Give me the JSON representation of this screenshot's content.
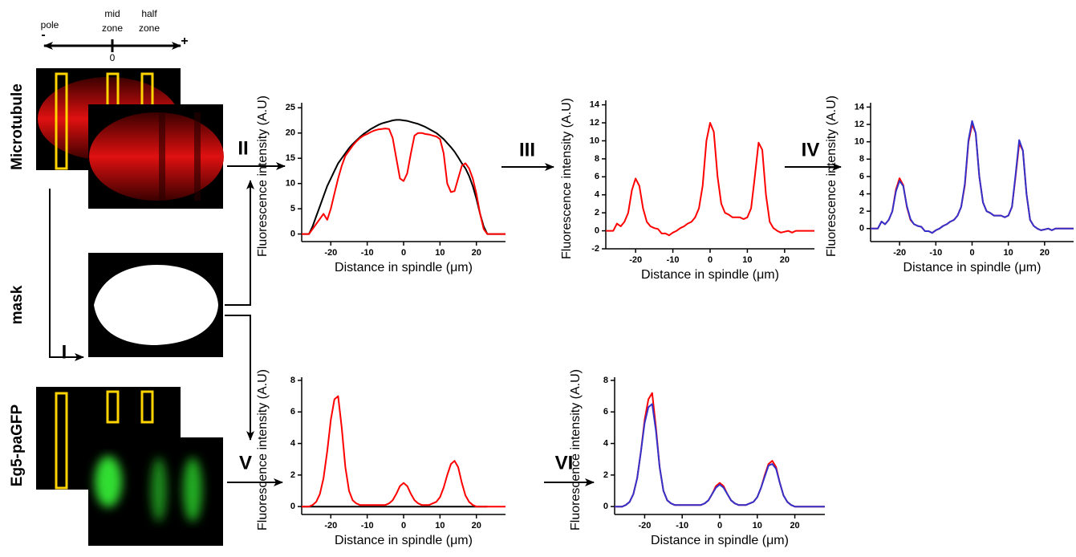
{
  "panel": {
    "orientation": {
      "pole": "pole",
      "mid_zone": [
        "mid",
        "zone"
      ],
      "half_zone": [
        "half",
        "zone"
      ],
      "zero": "0",
      "minus": "-",
      "plus": "+"
    },
    "rows": [
      "Microtubule",
      "mask",
      "Eg5-paGFP"
    ],
    "steps": [
      "I",
      "II",
      "III",
      "IV",
      "V",
      "VI"
    ]
  },
  "chart_data": [
    {
      "type": "line",
      "x_label": "Distance in spindle (μm)",
      "y_label": "Fluorescence intensity (A.U)",
      "x": [
        -28,
        -27,
        -26,
        -25,
        -24,
        -23,
        -22,
        -21,
        -20,
        -19,
        -18,
        -17,
        -16,
        -15,
        -14,
        -13,
        -12,
        -11,
        -10,
        -9,
        -8,
        -7,
        -6,
        -5,
        -4,
        -3,
        -2,
        -1,
        0,
        1,
        2,
        3,
        4,
        5,
        6,
        7,
        8,
        9,
        10,
        11,
        12,
        13,
        14,
        15,
        16,
        17,
        18,
        19,
        20,
        21,
        22,
        23,
        24,
        25,
        26,
        27,
        28
      ],
      "series": [
        {
          "color": "#000000",
          "values": [
            0,
            0,
            0,
            1.5,
            3.5,
            5.5,
            7.5,
            9.5,
            11,
            12.5,
            14,
            15,
            16,
            17,
            17.8,
            18.5,
            19.2,
            19.8,
            20.3,
            20.8,
            21.2,
            21.6,
            21.9,
            22.1,
            22.3,
            22.5,
            22.6,
            22.6,
            22.5,
            22.4,
            22.2,
            22,
            21.8,
            21.5,
            21.2,
            20.8,
            20.4,
            20,
            19.4,
            18.8,
            18,
            17.2,
            16.3,
            15.2,
            14,
            13,
            11.5,
            9.5,
            7,
            4,
            1.5,
            0,
            0,
            0,
            0,
            0,
            0
          ]
        },
        {
          "color": "#ff0000",
          "values": [
            0,
            0,
            0,
            1,
            2,
            3,
            4,
            2.8,
            5,
            8,
            11,
            13.5,
            15.5,
            16.5,
            17.5,
            18.3,
            19,
            19.5,
            19.8,
            20.2,
            20.5,
            20.7,
            20.8,
            20.9,
            20.8,
            19,
            15,
            11,
            10.5,
            12,
            16,
            19.5,
            20,
            20,
            19.8,
            19.7,
            19.5,
            19.3,
            18.8,
            16,
            10,
            8.3,
            8.5,
            11,
            13.5,
            14,
            13,
            11,
            8,
            4,
            1,
            0,
            0,
            0,
            0,
            0,
            0
          ]
        }
      ],
      "xlim": [
        -28,
        28
      ],
      "xticks": [
        -20,
        -10,
        0,
        10,
        20
      ],
      "ylim": [
        -1.5,
        26
      ],
      "yticks": [
        0,
        5,
        10,
        15,
        20,
        25
      ]
    },
    {
      "type": "line",
      "x_label": "Distance in spindle (μm)",
      "y_label": "Fluorescence intensity (A.U)",
      "x": [
        -28,
        -27,
        -26,
        -25,
        -24,
        -23,
        -22,
        -21,
        -20,
        -19,
        -18,
        -17,
        -16,
        -15,
        -14,
        -13,
        -12,
        -11,
        -10,
        -9,
        -8,
        -7,
        -6,
        -5,
        -4,
        -3,
        -2,
        -1,
        0,
        1,
        2,
        3,
        4,
        5,
        6,
        7,
        8,
        9,
        10,
        11,
        12,
        13,
        14,
        15,
        16,
        17,
        18,
        19,
        20,
        21,
        22,
        23,
        24,
        25,
        26,
        27,
        28
      ],
      "series": [
        {
          "color": "#ff0000",
          "values": [
            0,
            0,
            0,
            0.8,
            0.5,
            1,
            2,
            4.5,
            5.8,
            5,
            2.5,
            1,
            0.5,
            0.3,
            0.2,
            -0.3,
            -0.3,
            -0.5,
            -0.2,
            0,
            0.3,
            0.5,
            0.8,
            1,
            1.5,
            2.5,
            5,
            10,
            12,
            11,
            6,
            3,
            2,
            1.8,
            1.5,
            1.5,
            1.5,
            1.3,
            1.5,
            2.5,
            6,
            9.8,
            9,
            4,
            1,
            0.3,
            0,
            -0.2,
            -0.1,
            0,
            -0.2,
            0,
            0,
            0,
            0,
            0,
            0
          ]
        }
      ],
      "xlim": [
        -28,
        28
      ],
      "xticks": [
        -20,
        -10,
        0,
        10,
        20
      ],
      "ylim": [
        -2,
        14.5
      ],
      "yticks": [
        -2,
        0,
        2,
        4,
        6,
        8,
        10,
        12,
        14
      ]
    },
    {
      "type": "line",
      "x_label": "Distance in spindle (μm)",
      "y_label": "Fluorescence intensity (A.U)",
      "x": [
        -28,
        -27,
        -26,
        -25,
        -24,
        -23,
        -22,
        -21,
        -20,
        -19,
        -18,
        -17,
        -16,
        -15,
        -14,
        -13,
        -12,
        -11,
        -10,
        -9,
        -8,
        -7,
        -6,
        -5,
        -4,
        -3,
        -2,
        -1,
        0,
        1,
        2,
        3,
        4,
        5,
        6,
        7,
        8,
        9,
        10,
        11,
        12,
        13,
        14,
        15,
        16,
        17,
        18,
        19,
        20,
        21,
        22,
        23,
        24,
        25,
        26,
        27,
        28
      ],
      "series": [
        {
          "color": "#ff0000",
          "values": [
            0,
            0,
            0,
            0.8,
            0.5,
            1,
            2,
            4.5,
            5.8,
            5,
            2.5,
            1,
            0.5,
            0.3,
            0.2,
            -0.3,
            -0.3,
            -0.5,
            -0.2,
            0,
            0.3,
            0.5,
            0.8,
            1,
            1.5,
            2.5,
            5,
            10,
            12,
            11,
            6,
            3,
            2,
            1.8,
            1.5,
            1.5,
            1.5,
            1.3,
            1.5,
            2.5,
            6,
            9.8,
            9,
            4,
            1,
            0.3,
            0,
            -0.2,
            -0.1,
            0,
            -0.2,
            0,
            0,
            0,
            0,
            0,
            0
          ]
        },
        {
          "color": "#3333cc",
          "values": [
            0,
            0,
            0,
            0.8,
            0.5,
            1,
            2,
            4.3,
            5.5,
            4.9,
            2.6,
            1.1,
            0.5,
            0.3,
            0.2,
            -0.3,
            -0.3,
            -0.5,
            -0.2,
            0,
            0.3,
            0.5,
            0.8,
            1,
            1.5,
            2.5,
            5.2,
            10.2,
            12.4,
            11,
            6,
            3,
            2,
            1.8,
            1.5,
            1.5,
            1.5,
            1.3,
            1.5,
            2.5,
            6.2,
            10.2,
            9,
            4,
            1,
            0.3,
            0,
            -0.2,
            -0.1,
            0,
            -0.2,
            0,
            0,
            0,
            0,
            0,
            0
          ]
        }
      ],
      "xlim": [
        -28,
        28
      ],
      "xticks": [
        -20,
        -10,
        0,
        10,
        20
      ],
      "ylim": [
        -1.5,
        14.5
      ],
      "yticks": [
        0,
        2,
        4,
        6,
        8,
        10,
        12,
        14
      ]
    },
    {
      "type": "line",
      "x_label": "Distance in spindle (μm)",
      "y_label": "Fluorescence intensity (A.U)",
      "x": [
        -28,
        -27,
        -26,
        -25,
        -24,
        -23,
        -22,
        -21,
        -20,
        -19,
        -18,
        -17,
        -16,
        -15,
        -14,
        -13,
        -12,
        -11,
        -10,
        -9,
        -8,
        -7,
        -6,
        -5,
        -4,
        -3,
        -2,
        -1,
        0,
        1,
        2,
        3,
        4,
        5,
        6,
        7,
        8,
        9,
        10,
        11,
        12,
        13,
        14,
        15,
        16,
        17,
        18,
        19,
        20,
        21,
        22,
        23,
        24,
        25,
        26,
        27,
        28
      ],
      "series": [
        {
          "color": "#000000",
          "values": [
            0,
            0,
            0,
            0,
            0,
            0,
            0,
            0,
            0,
            0,
            0,
            0,
            0,
            0,
            0,
            0,
            0,
            0,
            0,
            0,
            0,
            0,
            0,
            0,
            0,
            0,
            0,
            0,
            0,
            0,
            0,
            0,
            0,
            0,
            0,
            0,
            0,
            0,
            0,
            0,
            0,
            0,
            0,
            0,
            0,
            0,
            0,
            0,
            0,
            0,
            0,
            0,
            null,
            null,
            null,
            null,
            null
          ]
        },
        {
          "color": "#ff0000",
          "values": [
            0,
            0,
            0,
            0.1,
            0.3,
            0.8,
            1.8,
            3.5,
            5.5,
            6.8,
            7,
            5,
            2.5,
            1,
            0.4,
            0.2,
            0.1,
            0.1,
            0.1,
            0.1,
            0.1,
            0.1,
            0.1,
            0.1,
            0.2,
            0.4,
            0.8,
            1.3,
            1.5,
            1.3,
            0.8,
            0.4,
            0.2,
            0.1,
            0.1,
            0.1,
            0.2,
            0.3,
            0.6,
            1.2,
            2,
            2.7,
            2.9,
            2.5,
            1.5,
            0.7,
            0.3,
            0.1,
            0,
            0,
            0,
            0,
            0,
            0,
            0,
            0,
            0
          ]
        }
      ],
      "xlim": [
        -28,
        28
      ],
      "xticks": [
        -20,
        -10,
        0,
        10,
        20
      ],
      "ylim": [
        -0.5,
        8.2
      ],
      "yticks": [
        0,
        2,
        4,
        6,
        8
      ]
    },
    {
      "type": "line",
      "x_label": "Distance in spindle (μm)",
      "y_label": "Fluorescence intensity (A.U)",
      "x": [
        -28,
        -27,
        -26,
        -25,
        -24,
        -23,
        -22,
        -21,
        -20,
        -19,
        -18,
        -17,
        -16,
        -15,
        -14,
        -13,
        -12,
        -11,
        -10,
        -9,
        -8,
        -7,
        -6,
        -5,
        -4,
        -3,
        -2,
        -1,
        0,
        1,
        2,
        3,
        4,
        5,
        6,
        7,
        8,
        9,
        10,
        11,
        12,
        13,
        14,
        15,
        16,
        17,
        18,
        19,
        20,
        21,
        22,
        23,
        24,
        25,
        26,
        27,
        28
      ],
      "series": [
        {
          "color": "#ff0000",
          "values": [
            0,
            0,
            0,
            0.1,
            0.3,
            0.8,
            1.8,
            3.5,
            5.5,
            6.8,
            7.2,
            5,
            2.5,
            1,
            0.4,
            0.2,
            0.1,
            0.1,
            0.1,
            0.1,
            0.1,
            0.1,
            0.1,
            0.1,
            0.2,
            0.4,
            0.8,
            1.3,
            1.5,
            1.3,
            0.8,
            0.4,
            0.2,
            0.1,
            0.1,
            0.1,
            0.2,
            0.3,
            0.6,
            1.2,
            2,
            2.7,
            2.9,
            2.5,
            1.5,
            0.7,
            0.3,
            0.1,
            0,
            0,
            0,
            0,
            0,
            0,
            0,
            0,
            0
          ]
        },
        {
          "color": "#3333cc",
          "values": [
            0,
            0,
            0,
            0.1,
            0.3,
            0.8,
            1.8,
            3.5,
            5.3,
            6.3,
            6.5,
            4.8,
            2.5,
            1,
            0.4,
            0.2,
            0.1,
            0.1,
            0.1,
            0.1,
            0.1,
            0.1,
            0.1,
            0.1,
            0.2,
            0.4,
            0.8,
            1.2,
            1.4,
            1.2,
            0.8,
            0.4,
            0.2,
            0.1,
            0.1,
            0.1,
            0.2,
            0.3,
            0.6,
            1.2,
            1.9,
            2.6,
            2.7,
            2.4,
            1.5,
            0.7,
            0.3,
            0.1,
            0,
            0,
            0,
            0,
            0,
            0,
            0,
            0,
            0
          ]
        }
      ],
      "xlim": [
        -28,
        28
      ],
      "xticks": [
        -20,
        -10,
        0,
        10,
        20
      ],
      "ylim": [
        -0.5,
        8.2
      ],
      "yticks": [
        0,
        2,
        4,
        6,
        8
      ]
    }
  ]
}
